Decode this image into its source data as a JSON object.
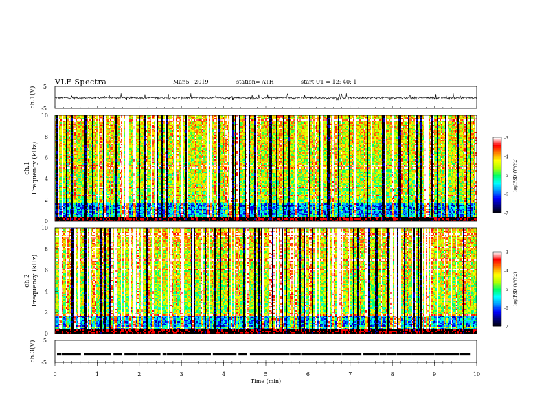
{
  "header": {
    "title": "VLF  Spectra",
    "date": "Mar.5  , 2019",
    "station": "station= ATH",
    "start": "start  UT  =    12: 40: 1"
  },
  "colors": {
    "trace": "#000000",
    "colormap": [
      "#000000",
      "#00007a",
      "#0000ff",
      "#0096ff",
      "#00ffff",
      "#00ff64",
      "#b4ff00",
      "#ffff00",
      "#ff8000",
      "#ff0000",
      "#ffffff"
    ]
  },
  "chart_data": [
    {
      "type": "line",
      "ylabel": "ch.1(V)",
      "ylim": [
        -5,
        5
      ],
      "yticks": [
        "5",
        "-5"
      ],
      "xlim": [
        0,
        10
      ],
      "series": [
        {
          "description_level": -0.2,
          "values_range": [
            -1.5,
            1.8
          ]
        }
      ]
    },
    {
      "type": "heatmap",
      "ylabel": "ch.1\nFrequency  (kHz)",
      "ylabel_lines": [
        "ch.1",
        "Frequency  (kHz)"
      ],
      "ylim": [
        0,
        10
      ],
      "yticks": [
        "0",
        "2",
        "4",
        "6",
        "8",
        "10"
      ],
      "xlim": [
        0,
        10
      ],
      "colorbar": {
        "label": "log(PSD)(V²/Hz)",
        "ticks": [
          "-3",
          "-4",
          "-5",
          "-6",
          "-7"
        ],
        "range": [
          -7,
          -3
        ]
      }
    },
    {
      "type": "heatmap",
      "ylabel": "ch.2\nFrequency  (kHz)",
      "ylabel_lines": [
        "ch.2",
        "Frequency  (kHz)"
      ],
      "ylim": [
        0,
        10
      ],
      "yticks": [
        "0",
        "2",
        "4",
        "6",
        "8",
        "10"
      ],
      "xlim": [
        0,
        10
      ],
      "colorbar": {
        "label": "log(PSD)(V²/Hz)",
        "ticks": [
          "-3",
          "-4",
          "-5",
          "-6",
          "-7"
        ],
        "range": [
          -7,
          -3
        ]
      }
    },
    {
      "type": "line",
      "ylabel": "ch.3(V)",
      "ylim": [
        -5,
        5
      ],
      "yticks": [
        "5",
        "-5"
      ],
      "xlim": [
        0,
        10
      ],
      "series": [
        {
          "description_level": -1.3
        }
      ]
    }
  ],
  "xaxis": {
    "label": "Time  (min)",
    "ticks": [
      "0",
      "1",
      "2",
      "3",
      "4",
      "5",
      "6",
      "7",
      "8",
      "9",
      "10"
    ]
  }
}
